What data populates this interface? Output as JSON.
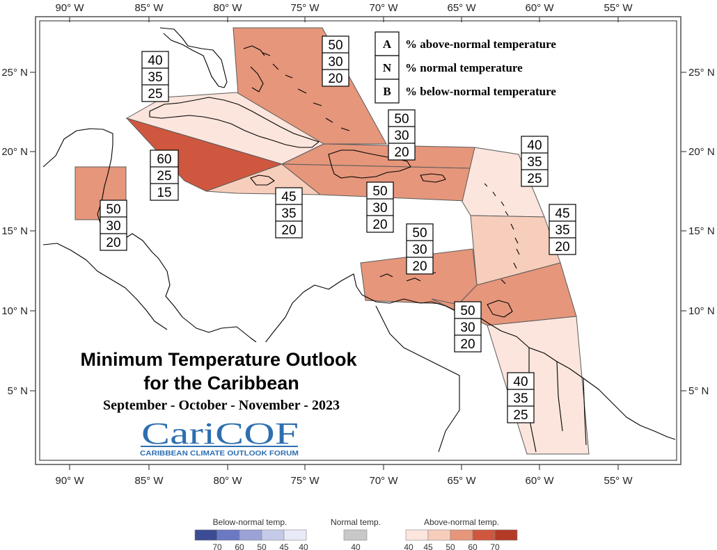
{
  "title": {
    "line1": "Minimum Temperature Outlook",
    "line2": "for the Caribbean",
    "season": "September - October - November - 2023"
  },
  "logo": {
    "name": "CariCOF",
    "subtitle": "CARIBBEAN CLIMATE OUTLOOK FORUM"
  },
  "key": [
    {
      "letter": "A",
      "text": "% above-normal temperature"
    },
    {
      "letter": "N",
      "text": "% normal temperature"
    },
    {
      "letter": "B",
      "text": "% below-normal temperature"
    }
  ],
  "longitude_ticks": [
    "90° W",
    "85° W",
    "80° W",
    "75° W",
    "70° W",
    "65° W",
    "60° W",
    "55° W"
  ],
  "latitude_ticks": [
    "25° N",
    "20° N",
    "15° N",
    "10° N",
    "5° N"
  ],
  "regions": [
    {
      "id": "bahamas",
      "probabilities": [
        "50",
        "30",
        "20"
      ],
      "fill": "#e6967b"
    },
    {
      "id": "cuba-west",
      "probabilities": [
        "40",
        "35",
        "25"
      ],
      "fill": "#fbe5dc"
    },
    {
      "id": "cayman",
      "probabilities": [
        "60",
        "25",
        "15"
      ],
      "fill": "#cf573f"
    },
    {
      "id": "jamaica",
      "probabilities": [
        "45",
        "35",
        "20"
      ],
      "fill": "#f7cdbb"
    },
    {
      "id": "hispaniola-pr",
      "probabilities": [
        "50",
        "30",
        "20"
      ],
      "fill": "#e6967b"
    },
    {
      "id": "hispaniola-south",
      "probabilities": [
        "50",
        "30",
        "20"
      ],
      "fill": "#e6967b"
    },
    {
      "id": "belize",
      "probabilities": [
        "50",
        "30",
        "20"
      ],
      "fill": "#e6967b"
    },
    {
      "id": "leeward-islands",
      "probabilities": [
        "40",
        "35",
        "25"
      ],
      "fill": "#fbe5dc"
    },
    {
      "id": "windward-islands",
      "probabilities": [
        "45",
        "35",
        "20"
      ],
      "fill": "#f7cdbb"
    },
    {
      "id": "abc-islands",
      "probabilities": [
        "50",
        "30",
        "20"
      ],
      "fill": "#e6967b"
    },
    {
      "id": "trinidad-barbados",
      "probabilities": [
        "50",
        "30",
        "20"
      ],
      "fill": "#e6967b"
    },
    {
      "id": "guianas",
      "probabilities": [
        "40",
        "35",
        "25"
      ],
      "fill": "#fbe5dc"
    }
  ],
  "legend": {
    "below": {
      "title": "Below-normal temp.",
      "ticks": [
        "70",
        "60",
        "50",
        "45",
        "40"
      ],
      "colors": [
        "#3b4c94",
        "#6b78c2",
        "#9ba2d6",
        "#c6cae9",
        "#e8eaf7"
      ]
    },
    "normal": {
      "title": "Normal temp.",
      "ticks": [
        "40"
      ],
      "colors": [
        "#c8c8c8"
      ]
    },
    "above": {
      "title": "Above-normal temp.",
      "ticks": [
        "40",
        "45",
        "50",
        "60",
        "70"
      ],
      "colors": [
        "#fbe5dc",
        "#f7cdbb",
        "#e6967b",
        "#cf573f",
        "#b33a27"
      ]
    }
  }
}
